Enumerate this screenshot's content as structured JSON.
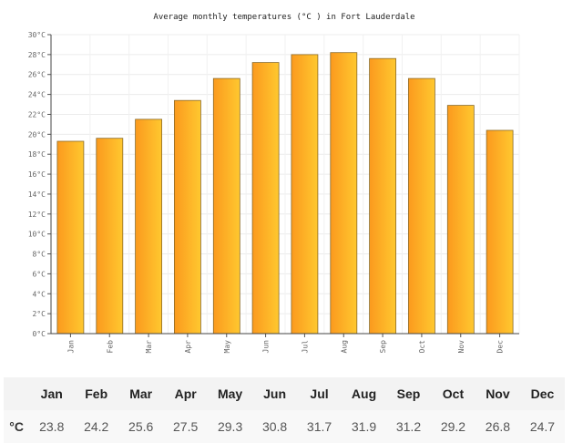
{
  "chart_data": {
    "type": "bar",
    "title": "Average monthly temperatures (°C ) in Fort Lauderdale",
    "categories": [
      "Jan",
      "Feb",
      "Mar",
      "Apr",
      "May",
      "Jun",
      "Jul",
      "Aug",
      "Sep",
      "Oct",
      "Nov",
      "Dec"
    ],
    "values": [
      19.3,
      19.6,
      21.5,
      23.4,
      25.6,
      27.2,
      28.0,
      28.2,
      27.6,
      25.6,
      22.9,
      20.4
    ],
    "ylim": [
      0,
      30
    ],
    "yticks": [
      "0°C",
      "2°C",
      "4°C",
      "6°C",
      "8°C",
      "10°C",
      "12°C",
      "14°C",
      "16°C",
      "18°C",
      "20°C",
      "22°C",
      "24°C",
      "26°C",
      "28°C",
      "30°C"
    ],
    "grid": true,
    "bar_gradient": [
      "#fb9a1e",
      "#ffc82f"
    ],
    "bar_stroke": "#8a6a28"
  },
  "table": {
    "columns": [
      "",
      "Jan",
      "Feb",
      "Mar",
      "Apr",
      "May",
      "Jun",
      "Jul",
      "Aug",
      "Sep",
      "Oct",
      "Nov",
      "Dec"
    ],
    "row": {
      "unit": "°C",
      "values": [
        "23.8",
        "24.2",
        "25.6",
        "27.5",
        "29.3",
        "30.8",
        "31.7",
        "31.9",
        "31.2",
        "29.2",
        "26.8",
        "24.7"
      ]
    }
  }
}
